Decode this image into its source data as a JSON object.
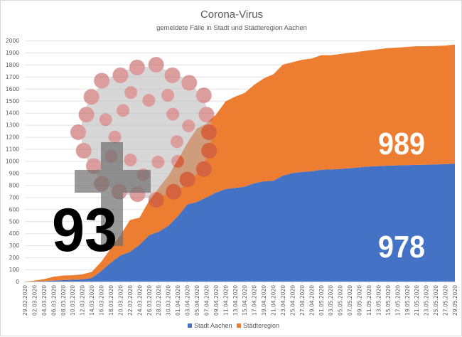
{
  "chart_data": {
    "type": "area",
    "stacked": true,
    "title": "Corona-Virus",
    "subtitle": "gemeldete Fälle in Stadt und Städteregion Aachen",
    "xlabel": "",
    "ylabel": "",
    "ylim": [
      0,
      2000
    ],
    "yticks": [
      0,
      100,
      200,
      300,
      400,
      500,
      600,
      700,
      800,
      900,
      1000,
      1100,
      1200,
      1300,
      1400,
      1500,
      1600,
      1700,
      1800,
      1900,
      2000
    ],
    "grid": true,
    "legend_position": "bottom",
    "categories": [
      "29.02.2020",
      "02.03.2020",
      "04.03.2020",
      "06.03.2020",
      "08.03.2020",
      "10.03.2020",
      "12.03.2020",
      "14.03.2020",
      "16.03.2020",
      "18.03.2020",
      "20.03.2020",
      "22.03.2020",
      "24.03.2020",
      "26.03.2020",
      "28.03.2020",
      "30.03.2020",
      "01.04.2020",
      "03.04.2020",
      "05.04.2020",
      "07.04.2020",
      "09.04.2020",
      "11.04.2020",
      "13.04.2020",
      "15.04.2020",
      "17.04.2020",
      "19.04.2020",
      "21.04.2020",
      "23.04.2020",
      "25.04.2020",
      "27.04.2020",
      "29.04.2020",
      "01.05.2020",
      "03.05.2020",
      "05.05.2020",
      "07.05.2020",
      "09.05.2020",
      "11.05.2020",
      "13.05.2020",
      "15.05.2020",
      "17.05.2020",
      "19.05.2020",
      "21.05.2020",
      "23.05.2020",
      "25.05.2020",
      "27.05.2020",
      "29.05.2020"
    ],
    "series": [
      {
        "name": "Stadt Aachen",
        "color": "#4472c4",
        "values": [
          0,
          2,
          3,
          8,
          12,
          15,
          18,
          30,
          88,
          157,
          216,
          246,
          305,
          384,
          413,
          462,
          541,
          640,
          660,
          698,
          738,
          767,
          777,
          787,
          816,
          832,
          836,
          879,
          900,
          909,
          915,
          928,
          930,
          934,
          940,
          948,
          954,
          958,
          962,
          964,
          966,
          968,
          970,
          972,
          974,
          978
        ]
      },
      {
        "name": "Städteregion",
        "color": "#ed7d31",
        "values": [
          1,
          6,
          17,
          32,
          38,
          37,
          42,
          50,
          77,
          118,
          169,
          264,
          225,
          286,
          362,
          413,
          469,
          510,
          610,
          612,
          647,
          728,
          758,
          778,
          817,
          854,
          884,
          921,
          920,
          931,
          935,
          950,
          948,
          954,
          958,
          960,
          964,
          970,
          975,
          977,
          981,
          985,
          983,
          983,
          984,
          989
        ]
      }
    ],
    "annotations": {
      "deaths": "93",
      "region_latest": "989",
      "city_latest": "978"
    }
  }
}
